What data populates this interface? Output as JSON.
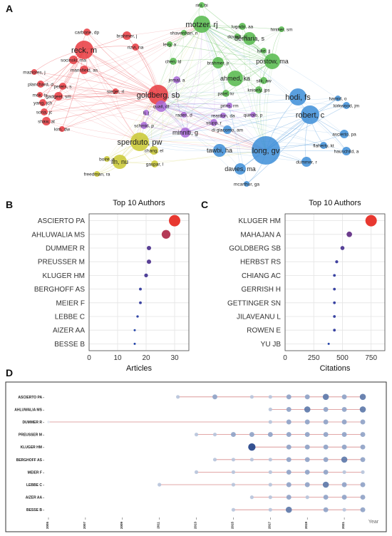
{
  "panels": {
    "a": "A",
    "b": "B",
    "c": "C",
    "d": "D"
  },
  "network": {
    "clusters": [
      {
        "color": "#e8393f",
        "nodes": [
          "reck, m",
          "brahmer, j",
          "carbone, dp",
          "rizvi, na",
          "socinski, ma",
          "mansfield, as",
          "maziores, j",
          "planchard, d",
          "peters, s",
          "gadgeel, sm",
          "siegel, rl",
          "mok, ts",
          "yang, jch",
          "soria, jc",
          "shaw, at",
          "kim, dw",
          "goldberg, sb"
        ]
      },
      {
        "color": "#53b84a",
        "nodes": [
          "rini, bi",
          "motzer, rj",
          "lugado, aa",
          "dovedi, sj",
          "hiniker, sm",
          "shaverdian, n",
          "demaria, s",
          "levy, a",
          "postow, ma",
          "chen, ld",
          "luke, jj",
          "brahmer, jr",
          "silk, aw",
          "ahmed, ka",
          "knisely, jps",
          "patel, kr"
        ]
      },
      {
        "color": "#3d8ed8",
        "nodes": [
          "hodi, fs",
          "robert, c",
          "hamid, o",
          "kirkwood, jm",
          "long, gv",
          "ascierto, pa",
          "flaherty, kt",
          "hauschild, a",
          "tawbi, ha",
          "davies, ma",
          "dummer, r",
          "mcarthur, ga",
          "di giacomo, am"
        ]
      },
      {
        "color": "#a868d8",
        "nodes": [
          "jemal, a",
          "quail, df",
          "li, j",
          "rades, d",
          "schmid, p",
          "minniti, g",
          "prins, rm",
          "stupp, r",
          "reardon, da",
          "quirolo, p"
        ]
      },
      {
        "color": "#c9c830",
        "nodes": [
          "sperduto, pw",
          "chang, el",
          "lin, nu",
          "boire, a",
          "gaspar, l",
          "freedman, ra"
        ]
      }
    ]
  },
  "chart_data": [
    {
      "type": "scatter",
      "title": "Top 10 Authors",
      "xlabel": "Articles",
      "categories": [
        "ASCIERTO PA",
        "AHLUWALIA MS",
        "DUMMER R",
        "PREUSSER M",
        "KLUGER HM",
        "BERGHOFF AS",
        "MEIER F",
        "LEBBE C",
        "AIZER AA",
        "BESSE B"
      ],
      "values": [
        30,
        27,
        21,
        21,
        20,
        18,
        18,
        17,
        16,
        16
      ],
      "xlim": [
        0,
        35
      ],
      "xticks": [
        0,
        10,
        20,
        30
      ],
      "grid": true
    },
    {
      "type": "scatter",
      "title": "Top 10 Authors",
      "xlabel": "Citations",
      "categories": [
        "KLUGER HM",
        "MAHAJAN A",
        "GOLDBERG SB",
        "HERBST RS",
        "CHIANG AC",
        "GERRISH H",
        "GETTINGER SN",
        "JILAVEANU L",
        "ROWEN E",
        "YU JB"
      ],
      "values": [
        750,
        560,
        500,
        450,
        430,
        430,
        430,
        430,
        430,
        380
      ],
      "xlim": [
        0,
        870
      ],
      "xticks": [
        0,
        250,
        500,
        750
      ],
      "grid": true
    },
    {
      "type": "scatter",
      "xlabel": "Year",
      "xticks": [
        "2005",
        "2007",
        "2009",
        "2011",
        "2013",
        "2015",
        "2017",
        "2019",
        "2021"
      ],
      "xlim": [
        2005,
        2022.5
      ],
      "authors": [
        {
          "name": "ASCIERTO PA",
          "start": 2012,
          "points": [
            [
              2012,
              2
            ],
            [
              2014,
              3
            ],
            [
              2016,
              2
            ],
            [
              2017,
              2
            ],
            [
              2018,
              3
            ],
            [
              2019,
              3
            ],
            [
              2020,
              4
            ],
            [
              2021,
              3
            ],
            [
              2022,
              4
            ]
          ]
        },
        {
          "name": "AHLUWALIA MS",
          "start": 2017,
          "points": [
            [
              2017,
              2
            ],
            [
              2018,
              3
            ],
            [
              2019,
              4
            ],
            [
              2020,
              3
            ],
            [
              2021,
              3
            ],
            [
              2022,
              4
            ]
          ]
        },
        {
          "name": "DUMMER R",
          "start": 2005,
          "points": [
            [
              2005,
              1
            ],
            [
              2017,
              2
            ],
            [
              2018,
              3
            ],
            [
              2019,
              3
            ],
            [
              2020,
              3
            ],
            [
              2021,
              3
            ],
            [
              2022,
              3
            ]
          ]
        },
        {
          "name": "PREUSSER M",
          "start": 2013,
          "points": [
            [
              2013,
              2
            ],
            [
              2014,
              2
            ],
            [
              2015,
              3
            ],
            [
              2016,
              3
            ],
            [
              2017,
              3
            ],
            [
              2018,
              3
            ],
            [
              2019,
              3
            ],
            [
              2020,
              3
            ],
            [
              2021,
              3
            ],
            [
              2022,
              3
            ]
          ]
        },
        {
          "name": "KLUGER HM",
          "start": 2016,
          "points": [
            [
              2016,
              5
            ],
            [
              2018,
              3
            ],
            [
              2019,
              3
            ],
            [
              2020,
              3
            ],
            [
              2021,
              3
            ],
            [
              2022,
              3
            ]
          ]
        },
        {
          "name": "BERGHOFF AS",
          "start": 2014,
          "points": [
            [
              2014,
              2
            ],
            [
              2015,
              2
            ],
            [
              2016,
              2
            ],
            [
              2017,
              2
            ],
            [
              2018,
              3
            ],
            [
              2019,
              3
            ],
            [
              2020,
              3
            ],
            [
              2021,
              4
            ],
            [
              2022,
              3
            ]
          ]
        },
        {
          "name": "MEIER F",
          "start": 2013,
          "points": [
            [
              2013,
              2
            ],
            [
              2015,
              2
            ],
            [
              2017,
              2
            ],
            [
              2018,
              3
            ],
            [
              2019,
              3
            ],
            [
              2020,
              3
            ],
            [
              2021,
              2
            ],
            [
              2022,
              2
            ]
          ]
        },
        {
          "name": "LEBBE C",
          "start": 2011,
          "points": [
            [
              2011,
              2
            ],
            [
              2015,
              2
            ],
            [
              2017,
              2
            ],
            [
              2018,
              3
            ],
            [
              2019,
              3
            ],
            [
              2020,
              4
            ],
            [
              2021,
              3
            ],
            [
              2022,
              3
            ]
          ]
        },
        {
          "name": "AIZER AA",
          "start": 2016,
          "points": [
            [
              2016,
              2
            ],
            [
              2017,
              2
            ],
            [
              2018,
              3
            ],
            [
              2019,
              2
            ],
            [
              2020,
              3
            ],
            [
              2021,
              3
            ],
            [
              2022,
              3
            ]
          ]
        },
        {
          "name": "BESSE B",
          "start": 2015,
          "points": [
            [
              2015,
              2
            ],
            [
              2017,
              2
            ],
            [
              2018,
              4
            ],
            [
              2020,
              3
            ],
            [
              2021,
              2
            ],
            [
              2022,
              3
            ]
          ]
        }
      ]
    }
  ]
}
